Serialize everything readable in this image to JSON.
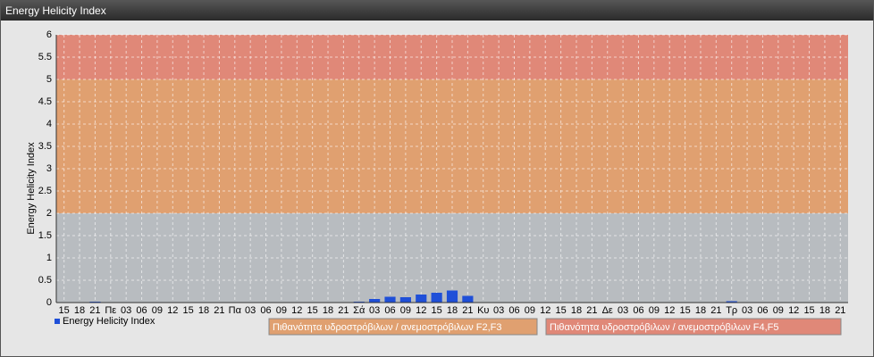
{
  "chart_data": {
    "type": "bar",
    "title": "Energy Helicity Index",
    "y_label": "Energy Helicity Index",
    "categories": [
      "15",
      "18",
      "21",
      "Πε",
      "03",
      "06",
      "09",
      "12",
      "15",
      "18",
      "21",
      "Πα",
      "03",
      "06",
      "09",
      "12",
      "15",
      "18",
      "21",
      "Σά",
      "03",
      "06",
      "09",
      "12",
      "15",
      "18",
      "21",
      "Κυ",
      "03",
      "06",
      "09",
      "12",
      "15",
      "18",
      "21",
      "Δε",
      "03",
      "06",
      "09",
      "12",
      "15",
      "18",
      "21",
      "Τρ",
      "03",
      "06",
      "09",
      "12",
      "15",
      "18",
      "21"
    ],
    "series": [
      {
        "name": "Energy Helicity Index",
        "color": "#1f4fd8",
        "values": [
          0.01,
          0.01,
          0.02,
          0.01,
          0.01,
          0.01,
          0.01,
          0.01,
          0.01,
          0.01,
          0.01,
          0.01,
          0.01,
          0.01,
          0.01,
          0.01,
          0.01,
          0.01,
          0.01,
          0.02,
          0.08,
          0.13,
          0.12,
          0.18,
          0.22,
          0.27,
          0.15,
          0.01,
          0.01,
          0.01,
          0.01,
          0.01,
          0.01,
          0.01,
          0.01,
          0.01,
          0.01,
          0.01,
          0.01,
          0.01,
          0.01,
          0.01,
          0.01,
          0.03,
          0.01,
          0.01,
          0.01,
          0.01,
          0.01,
          0.01,
          0.01
        ]
      }
    ],
    "bands": [
      {
        "from": 2,
        "to": 5,
        "color": "#e0a070",
        "label": "Πιθανότητα υδροστρόβιλων / ανεμοστρόβιλων F2,F3"
      },
      {
        "from": 5,
        "to": 6,
        "color": "#e08878",
        "label": "Πιθανότητα υδροστρόβιλων / ανεμοστρόβιλων F4,F5"
      }
    ],
    "ylim": [
      0,
      6
    ],
    "yticks": [
      0,
      0.5,
      1,
      1.5,
      2,
      2.5,
      3,
      3.5,
      4,
      4.5,
      5,
      5.5,
      6
    ],
    "grid": true
  }
}
